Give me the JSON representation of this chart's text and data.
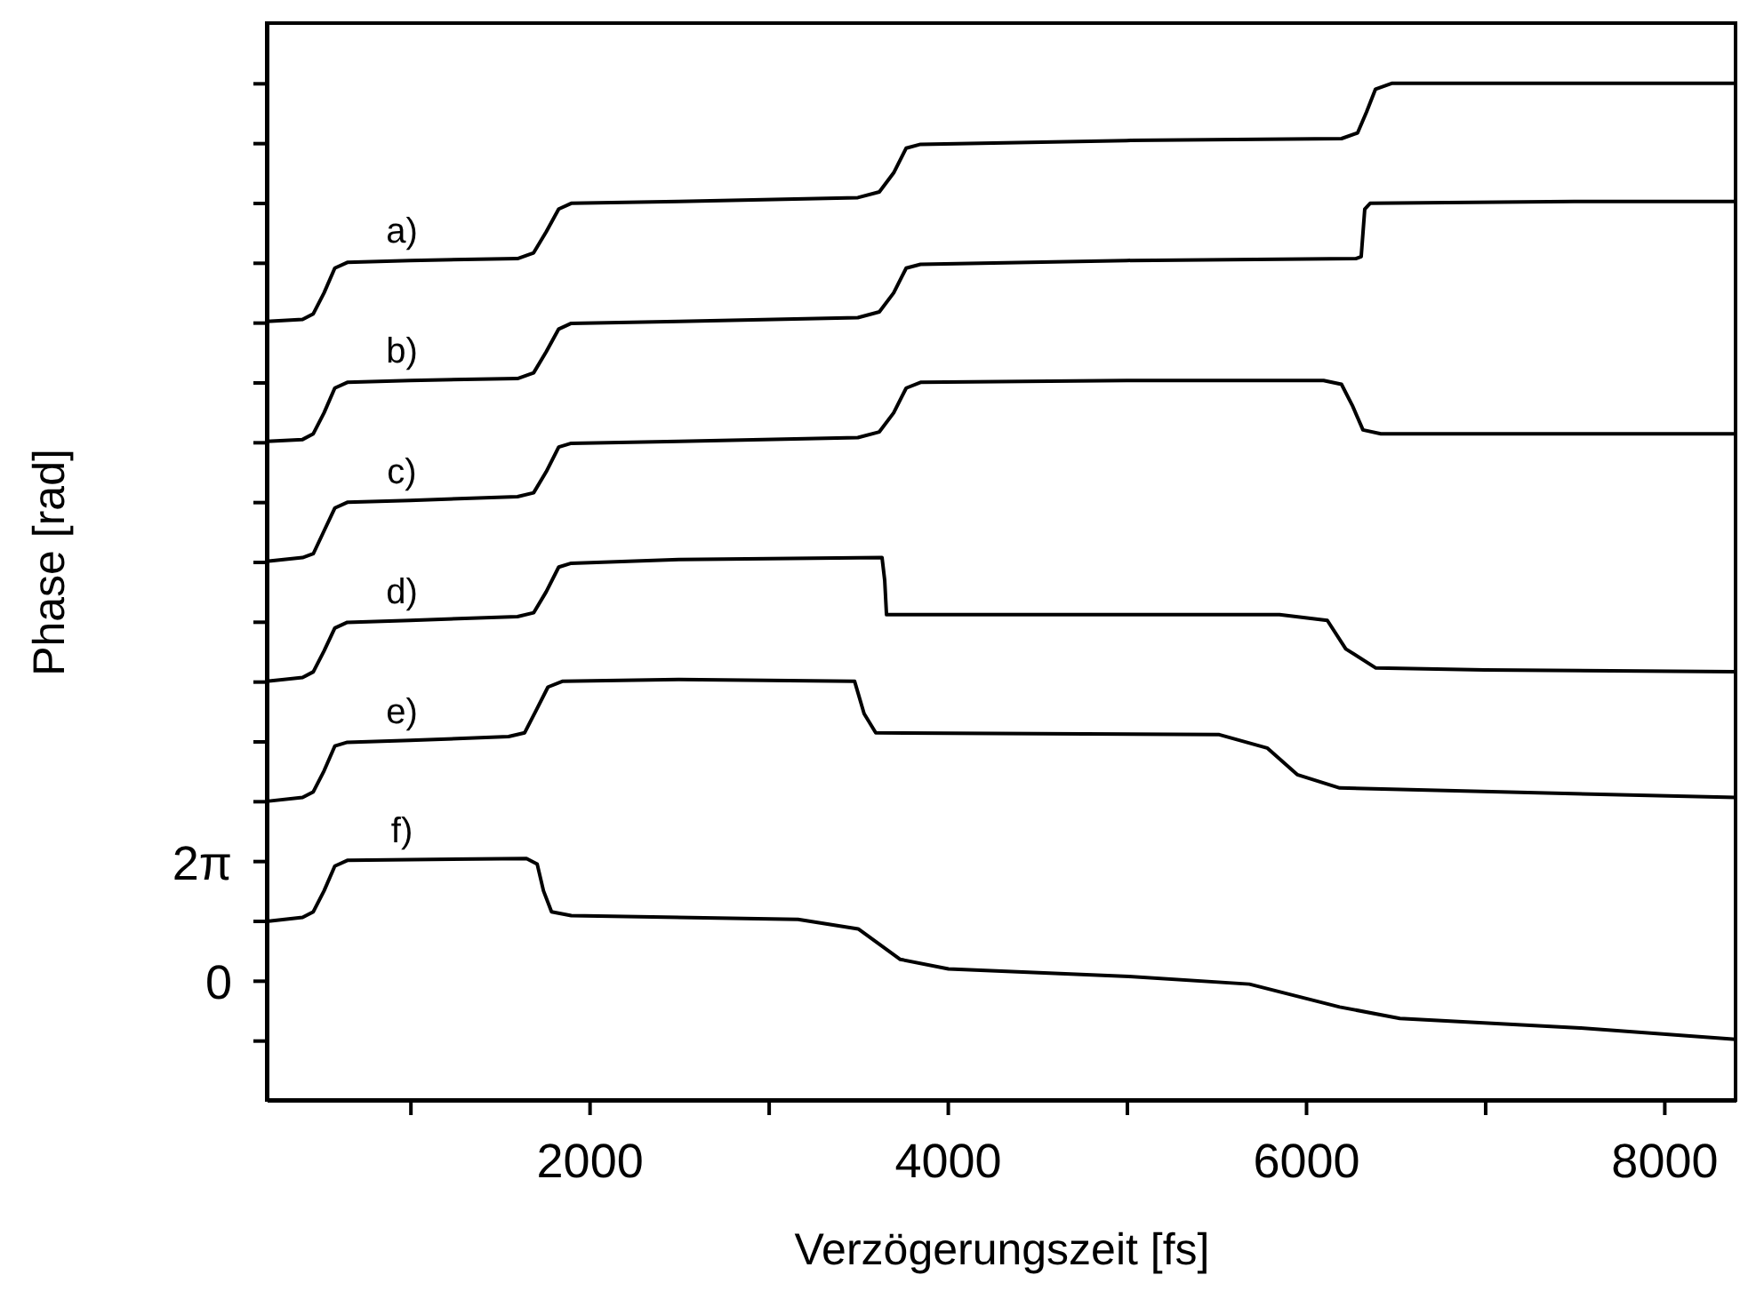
{
  "chart_data": {
    "type": "line",
    "xlabel": "Verzögerungszeit [fs]",
    "ylabel": "Phase [rad]",
    "xlim": [
      200,
      8400
    ],
    "ylim": [
      -6.283,
      50.265
    ],
    "xticks": [
      {
        "value": 1000,
        "label": null
      },
      2000,
      {
        "value": 3000,
        "label": null
      },
      4000,
      {
        "value": 5000,
        "label": null
      },
      6000,
      {
        "value": 7000,
        "label": null
      },
      8000
    ],
    "yticks": [
      {
        "value": -3.142,
        "label": null
      },
      0,
      {
        "value": 3.142,
        "label": null
      },
      {
        "value": 6.283,
        "label": "2π"
      },
      {
        "value": 9.425,
        "label": null
      },
      {
        "value": 12.566,
        "label": null
      },
      {
        "value": 15.708,
        "label": null
      },
      {
        "value": 18.85,
        "label": null
      },
      {
        "value": 21.991,
        "label": null
      },
      {
        "value": 25.133,
        "label": null
      },
      {
        "value": 28.274,
        "label": null
      },
      {
        "value": 31.416,
        "label": null
      },
      {
        "value": 34.558,
        "label": null
      },
      {
        "value": 37.699,
        "label": null
      },
      {
        "value": 40.841,
        "label": null
      },
      {
        "value": 43.982,
        "label": null
      },
      {
        "value": 47.124,
        "label": null
      }
    ],
    "grid": false,
    "line_style": "solid",
    "series": [
      {
        "name": "a)",
        "color": "#000000",
        "x": [
          200,
          400,
          460,
          520,
          580,
          650,
          1000,
          1600,
          1690,
          1760,
          1830,
          1900,
          2500,
          3500,
          3620,
          3700,
          3770,
          3850,
          5000,
          6200,
          6290,
          6340,
          6390,
          6480,
          7500,
          8400
        ],
        "values": [
          34.6,
          34.7,
          35.0,
          36.1,
          37.4,
          37.7,
          37.8,
          37.9,
          38.2,
          39.3,
          40.5,
          40.8,
          40.9,
          41.1,
          41.4,
          42.4,
          43.7,
          43.9,
          44.1,
          44.2,
          44.5,
          45.6,
          46.8,
          47.1,
          47.1,
          47.1
        ]
      },
      {
        "name": "b)",
        "color": "#000000",
        "x": [
          200,
          400,
          460,
          520,
          580,
          650,
          1000,
          1600,
          1690,
          1760,
          1830,
          1900,
          2500,
          3500,
          3620,
          3700,
          3770,
          3850,
          5000,
          6280,
          6310,
          6330,
          6360,
          7500,
          8400
        ],
        "values": [
          28.3,
          28.4,
          28.7,
          29.8,
          31.1,
          31.4,
          31.5,
          31.6,
          31.9,
          33.0,
          34.2,
          34.5,
          34.6,
          34.8,
          35.1,
          36.1,
          37.4,
          37.6,
          37.8,
          37.9,
          38.0,
          40.5,
          40.8,
          40.9,
          40.9
        ]
      },
      {
        "name": "c)",
        "color": "#000000",
        "x": [
          200,
          400,
          460,
          520,
          580,
          650,
          1000,
          1600,
          1690,
          1760,
          1830,
          1900,
          2500,
          3500,
          3620,
          3700,
          3770,
          3850,
          5000,
          6100,
          6200,
          6260,
          6320,
          6420,
          7500,
          8400
        ],
        "values": [
          22.0,
          22.2,
          22.4,
          23.6,
          24.8,
          25.1,
          25.2,
          25.4,
          25.6,
          26.7,
          28.0,
          28.2,
          28.3,
          28.5,
          28.8,
          29.8,
          31.1,
          31.4,
          31.5,
          31.5,
          31.3,
          30.2,
          28.9,
          28.7,
          28.7,
          28.7
        ]
      },
      {
        "name": "d)",
        "color": "#000000",
        "x": [
          200,
          400,
          460,
          520,
          580,
          650,
          1000,
          1600,
          1690,
          1760,
          1830,
          1900,
          2500,
          3635,
          3650,
          3660,
          5854,
          6121,
          6224,
          6392,
          7000,
          8400
        ],
        "values": [
          15.7,
          15.9,
          16.2,
          17.3,
          18.5,
          18.8,
          18.9,
          19.1,
          19.3,
          20.4,
          21.7,
          21.9,
          22.1,
          22.2,
          21.0,
          19.2,
          19.2,
          18.9,
          17.4,
          16.4,
          16.3,
          16.2
        ]
      },
      {
        "name": "e)",
        "color": "#000000",
        "x": [
          200,
          400,
          460,
          520,
          580,
          650,
          1000,
          1550,
          1640,
          1700,
          1770,
          1850,
          2500,
          3482,
          3535,
          3600,
          5518,
          5785,
          5953,
          6190,
          8400
        ],
        "values": [
          9.4,
          9.6,
          9.9,
          11.0,
          12.3,
          12.5,
          12.6,
          12.8,
          13.0,
          14.1,
          15.4,
          15.7,
          15.8,
          15.7,
          14.0,
          13.0,
          12.9,
          12.2,
          10.8,
          10.1,
          9.6
        ]
      },
      {
        "name": "f)",
        "color": "#000000",
        "x": [
          200,
          400,
          460,
          520,
          580,
          650,
          1650,
          1710,
          1745,
          1790,
          1900,
          3166,
          3502,
          3737,
          4006,
          5014,
          5686,
          6190,
          6526,
          7534,
          8400
        ],
        "values": [
          3.1,
          3.3,
          3.6,
          4.7,
          6.0,
          6.3,
          6.4,
          6.1,
          4.7,
          3.6,
          3.4,
          3.2,
          2.7,
          1.1,
          0.6,
          0.2,
          -0.2,
          -1.4,
          -2.0,
          -2.5,
          -3.1
        ]
      }
    ]
  }
}
